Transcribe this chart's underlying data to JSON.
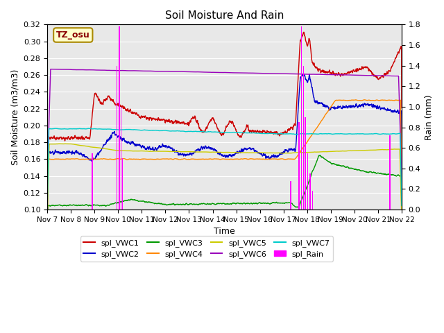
{
  "title": "Soil Moisture And Rain",
  "ylabel_left": "Soil Moisture (m3/m3)",
  "ylabel_right": "Rain (mm)",
  "xlabel": "Time",
  "ylim_left": [
    0.1,
    0.32
  ],
  "ylim_right": [
    0.0,
    1.8
  ],
  "annotation_text": "TZ_osu",
  "background_color": "#E8E8E8",
  "line_colors": {
    "VWC1": "#CC0000",
    "VWC2": "#0000CC",
    "VWC3": "#009900",
    "VWC4": "#FF8800",
    "VWC5": "#CCCC00",
    "VWC6": "#9900BB",
    "VWC7": "#00CCCC",
    "Rain": "#FF00FF"
  },
  "legend_labels": [
    "spl_VWC1",
    "spl_VWC2",
    "spl_VWC3",
    "spl_VWC4",
    "spl_VWC5",
    "spl_VWC6",
    "spl_VWC7",
    "spl_Rain"
  ],
  "xtick_labels": [
    "Nov 7",
    "Nov 8",
    "Nov 9",
    "Nov 10",
    "Nov 11",
    "Nov 12",
    "Nov 13",
    "Nov 14",
    "Nov 15",
    "Nov 16",
    "Nov 17",
    "Nov 18",
    "Nov 19",
    "Nov 20",
    "Nov 21",
    "Nov 22"
  ],
  "figsize": [
    6.4,
    4.8
  ],
  "dpi": 100,
  "rain_times": [
    1.9,
    2.95,
    3.05,
    3.12,
    3.18,
    10.3,
    10.65,
    10.75,
    10.85,
    10.92,
    11.02,
    11.12,
    11.22,
    14.5
  ],
  "rain_values": [
    0.55,
    1.4,
    1.78,
    1.0,
    0.5,
    0.28,
    0.85,
    1.78,
    1.4,
    0.9,
    0.55,
    0.35,
    0.18,
    0.72
  ]
}
